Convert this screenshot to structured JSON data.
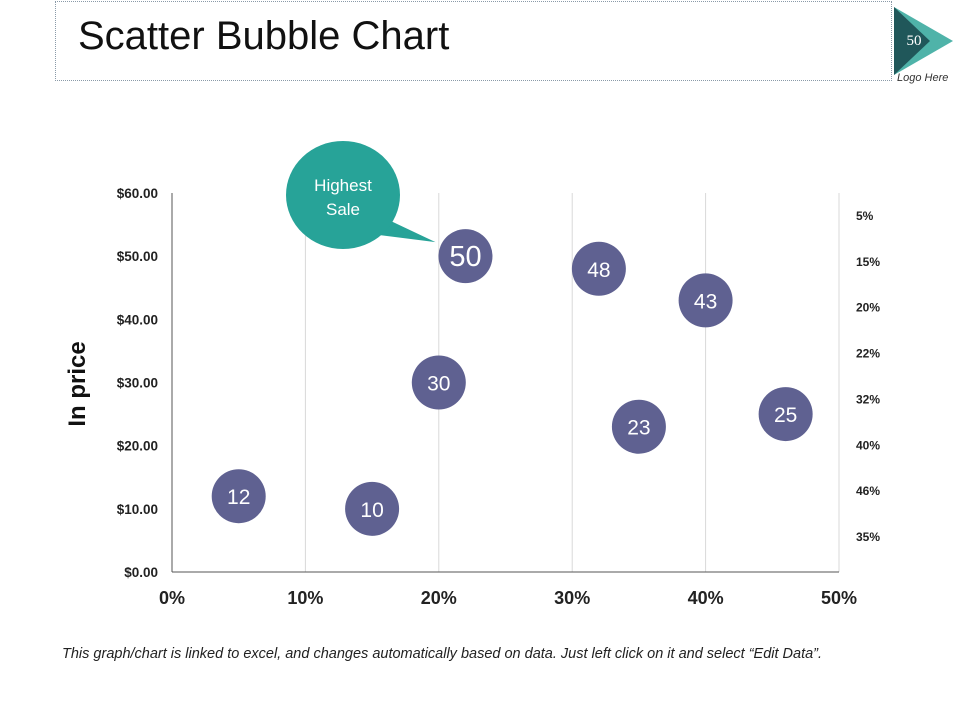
{
  "slide": {
    "title": "Scatter Bubble Chart",
    "page_number": "50",
    "logo_text": "Logo Here",
    "footnote": "This graph/chart is linked to excel, and changes automatically based on data. Just left click on it and select “Edit Data”.",
    "callout_text": "Highest Sale"
  },
  "colors": {
    "bubble": "#5f6191",
    "callout": "#27a398",
    "logo_light": "#4fb3a9",
    "logo_dark": "#20575a",
    "grid": "#d9d9d9",
    "axis": "#555555"
  },
  "chart_data": {
    "type": "scatter",
    "title": "",
    "xlabel": "",
    "ylabel": "In price",
    "xlim": [
      0,
      50
    ],
    "ylim": [
      0,
      60
    ],
    "x_ticks": [
      "0%",
      "10%",
      "20%",
      "30%",
      "40%",
      "50%"
    ],
    "y_ticks": [
      "$0.00",
      "$10.00",
      "$20.00",
      "$30.00",
      "$40.00",
      "$50.00",
      "$60.00"
    ],
    "right_labels": [
      "5%",
      "15%",
      "20%",
      "22%",
      "32%",
      "40%",
      "46%",
      "35%"
    ],
    "points": [
      {
        "x": 5,
        "y": 12,
        "label": "12"
      },
      {
        "x": 15,
        "y": 10,
        "label": "10"
      },
      {
        "x": 20,
        "y": 30,
        "label": "30"
      },
      {
        "x": 22,
        "y": 50,
        "label": "50",
        "highlight": true
      },
      {
        "x": 32,
        "y": 48,
        "label": "48"
      },
      {
        "x": 35,
        "y": 23,
        "label": "23"
      },
      {
        "x": 40,
        "y": 43,
        "label": "43"
      },
      {
        "x": 46,
        "y": 25,
        "label": "25"
      }
    ],
    "annotations": [
      {
        "text": "Highest Sale",
        "target_label": "50"
      }
    ]
  }
}
